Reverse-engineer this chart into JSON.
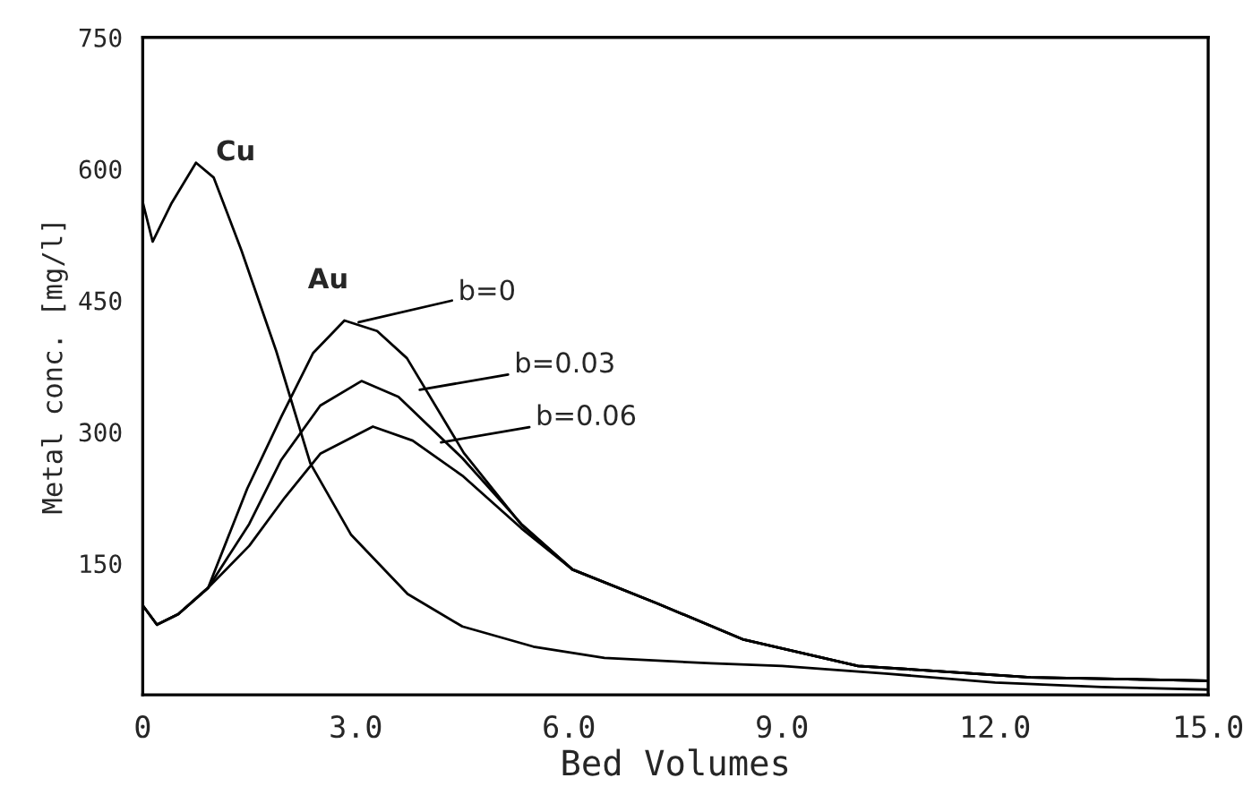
{
  "chart_data": {
    "type": "line",
    "xlabel": "Bed Volumes",
    "ylabel": "Metal conc. [mg/l]",
    "xlim": [
      0,
      15.0
    ],
    "xticks": [
      {
        "value": 0,
        "label": "0"
      },
      {
        "value": 3,
        "label": "3.0"
      },
      {
        "value": 6,
        "label": "6.0"
      },
      {
        "value": 9,
        "label": "9.0"
      },
      {
        "value": 12,
        "label": "12.0"
      },
      {
        "value": 15,
        "label": "15.0"
      }
    ],
    "ylim": [
      0,
      750
    ],
    "yticks": [
      150,
      300,
      450,
      600,
      750
    ],
    "grid": false,
    "legend": false,
    "marker": "none",
    "line_style": "solid",
    "series": [
      {
        "color": "#000000",
        "x": [
          0,
          0.14,
          0.4,
          0.75,
          1.0,
          1.39,
          1.88,
          2.36,
          2.93,
          3.73,
          4.5,
          5.5,
          6.5,
          8,
          9,
          10.5,
          12,
          13.5,
          15
        ],
        "values": [
          562,
          517,
          560,
          607,
          590,
          507,
          392,
          264,
          183,
          115,
          78,
          55,
          42,
          36,
          33,
          24,
          14,
          9,
          6
        ]
      },
      {
        "color": "#000000",
        "x": [
          0,
          0.2,
          0.5,
          0.92,
          1.47,
          1.95,
          2.4,
          2.84,
          3.3,
          3.72,
          4.52,
          5.33,
          6.05,
          7.25,
          8.46,
          10.07,
          12.5,
          15
        ],
        "values": [
          102,
          80,
          92,
          122,
          235,
          317,
          390,
          427,
          415,
          384,
          276,
          194,
          143,
          104,
          63,
          33,
          20,
          16
        ]
      },
      {
        "color": "#000000",
        "x": [
          0,
          0.2,
          0.5,
          0.92,
          1.5,
          1.95,
          2.5,
          3.08,
          3.6,
          4.5,
          5.33,
          6.05,
          7.25,
          8.46,
          10.07,
          12.5,
          15
        ],
        "values": [
          102,
          80,
          92,
          122,
          195,
          268,
          330,
          358,
          340,
          270,
          195,
          143,
          104,
          63,
          33,
          20,
          16
        ]
      },
      {
        "color": "#000000",
        "x": [
          0,
          0.2,
          0.5,
          0.92,
          1.5,
          2.0,
          2.5,
          3.24,
          3.8,
          4.5,
          5.33,
          6.05,
          7.25,
          8.46,
          10.07,
          12.5,
          15
        ],
        "values": [
          102,
          80,
          92,
          122,
          170,
          225,
          275,
          306,
          290,
          250,
          190,
          143,
          104,
          63,
          33,
          20,
          16
        ]
      }
    ],
    "annotations": [
      {
        "text": "Cu",
        "x": 0.75,
        "y": 607
      },
      "Au",
      {
        "text": "b=0",
        "x": 3.04,
        "y": 425
      },
      {
        "text": "b=0.03",
        "x": 3.9,
        "y": 348
      },
      {
        "text": "b=0.06",
        "x": 4.2,
        "y": 288
      }
    ]
  }
}
